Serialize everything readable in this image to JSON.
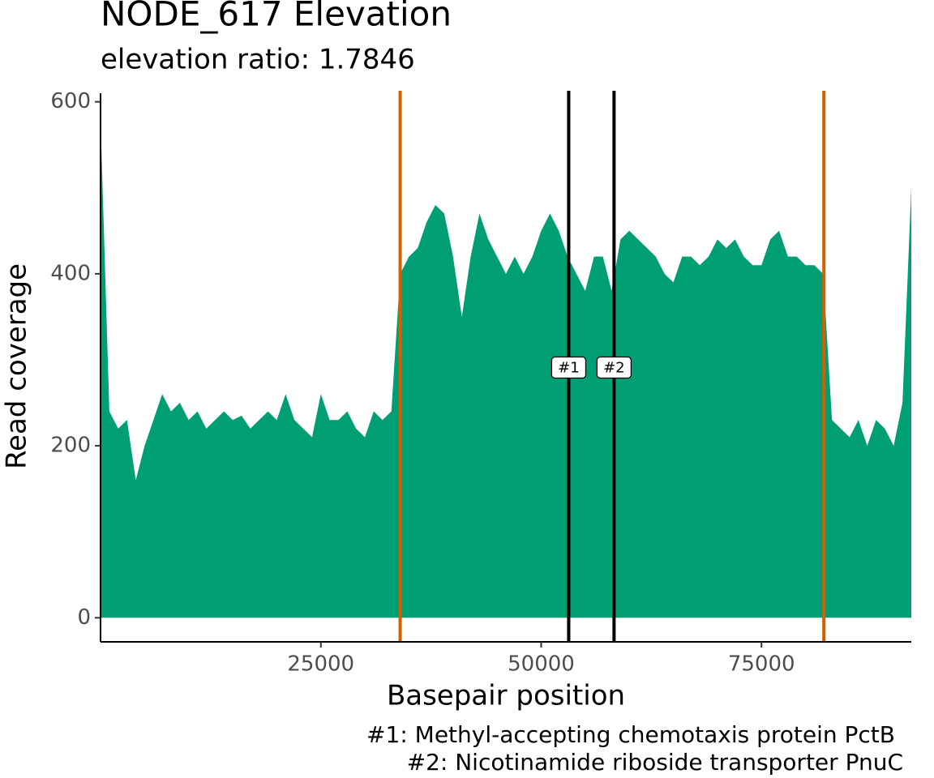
{
  "chart_data": {
    "type": "area",
    "title": "NODE_617 Elevation",
    "subtitle": "elevation ratio: 1.7846",
    "x_label": "Basepair position",
    "y_label": "Read coverage",
    "color": "#009E73",
    "x": [
      0,
      1000,
      2000,
      3000,
      4000,
      5000,
      6000,
      7000,
      8000,
      9000,
      10000,
      11000,
      12000,
      13000,
      14000,
      15000,
      16000,
      17000,
      18000,
      19000,
      20000,
      21000,
      22000,
      23000,
      24000,
      25000,
      26000,
      27000,
      28000,
      29000,
      30000,
      31000,
      32000,
      33000,
      34000,
      35000,
      36000,
      37000,
      38000,
      39000,
      40000,
      41000,
      42000,
      43000,
      44000,
      45000,
      46000,
      47000,
      48000,
      49000,
      50000,
      51000,
      52000,
      53000,
      54000,
      55000,
      56000,
      57000,
      58000,
      59000,
      60000,
      61000,
      62000,
      63000,
      64000,
      65000,
      66000,
      67000,
      68000,
      69000,
      70000,
      71000,
      72000,
      73000,
      74000,
      75000,
      76000,
      77000,
      78000,
      79000,
      80000,
      81000,
      82000,
      83000,
      84000,
      85000,
      86000,
      87000,
      88000,
      89000,
      90000,
      91000,
      92000
    ],
    "values": [
      580,
      240,
      220,
      230,
      160,
      200,
      230,
      260,
      240,
      250,
      230,
      240,
      220,
      230,
      240,
      230,
      235,
      220,
      230,
      240,
      230,
      260,
      230,
      220,
      210,
      260,
      230,
      230,
      240,
      220,
      210,
      240,
      230,
      240,
      400,
      420,
      430,
      460,
      480,
      470,
      420,
      350,
      420,
      470,
      440,
      420,
      400,
      420,
      400,
      420,
      450,
      470,
      450,
      420,
      400,
      380,
      420,
      420,
      380,
      440,
      450,
      440,
      430,
      420,
      400,
      390,
      420,
      420,
      410,
      420,
      440,
      430,
      440,
      420,
      410,
      410,
      440,
      450,
      420,
      420,
      410,
      410,
      400,
      230,
      220,
      210,
      230,
      200,
      230,
      220,
      200,
      250,
      500
    ],
    "xlim": [
      0,
      92000
    ],
    "ylim": [
      -28,
      610
    ],
    "xticks": [
      25000,
      50000,
      75000
    ],
    "yticks": [
      0,
      200,
      400,
      600
    ],
    "boundaries": {
      "color": "#D55E00",
      "x": [
        34000,
        82080
      ]
    },
    "genes": {
      "color": "#000000",
      "x": [
        53125,
        58270
      ],
      "labels": [
        "#1",
        "#2"
      ],
      "label_y": 291
    },
    "annotations": [
      "#1: Methyl-accepting chemotaxis protein PctB",
      "#2: Nicotinamide riboside transporter PnuC"
    ]
  }
}
